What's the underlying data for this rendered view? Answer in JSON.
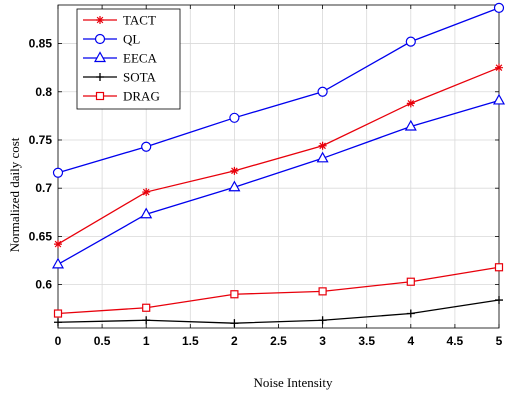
{
  "chart_data": {
    "type": "line",
    "title": "",
    "xlabel": "Noise Intensity",
    "ylabel": "Normalized daily cost",
    "x": [
      0,
      1,
      2,
      3,
      4,
      5
    ],
    "xlim": [
      0,
      5
    ],
    "ylim": [
      0.555,
      0.89
    ],
    "xticks": [
      "0",
      "0.5",
      "1",
      "1.5",
      "2",
      "2.5",
      "3",
      "3.5",
      "4",
      "4.5",
      "5"
    ],
    "yticks": [
      "0.6",
      "0.65",
      "0.7",
      "0.75",
      "0.8",
      "0.85"
    ],
    "grid": true,
    "legend_position": "top-left",
    "series": [
      {
        "name": "TACT",
        "color": "#e8000b",
        "marker": "asterisk",
        "values": [
          0.642,
          0.696,
          0.718,
          0.744,
          0.788,
          0.825
        ]
      },
      {
        "name": "QL",
        "color": "#0000ee",
        "marker": "circle",
        "values": [
          0.716,
          0.743,
          0.773,
          0.8,
          0.852,
          0.887
        ]
      },
      {
        "name": "EECA",
        "color": "#0000ee",
        "marker": "triangle",
        "values": [
          0.621,
          0.673,
          0.701,
          0.731,
          0.764,
          0.791
        ]
      },
      {
        "name": "SOTA",
        "color": "#000000",
        "marker": "plus",
        "values": [
          0.561,
          0.563,
          0.56,
          0.563,
          0.57,
          0.584
        ]
      },
      {
        "name": "DRAG",
        "color": "#e8000b",
        "marker": "square",
        "values": [
          0.57,
          0.576,
          0.59,
          0.593,
          0.603,
          0.618
        ]
      }
    ]
  }
}
